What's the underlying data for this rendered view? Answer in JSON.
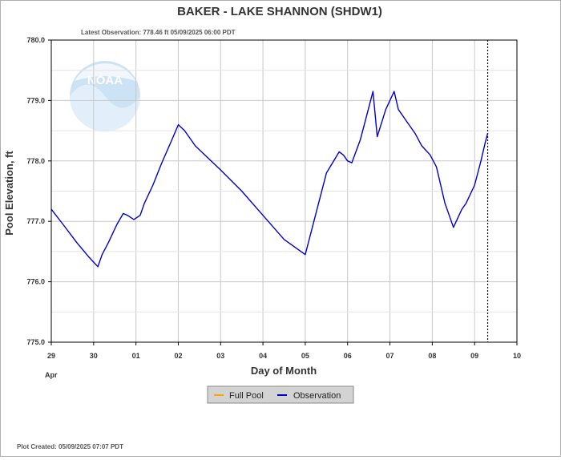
{
  "chart_data": {
    "type": "line",
    "title": "BAKER - LAKE SHANNON  (SHDW1)",
    "subtitle": "Latest Observation: 778.46 ft 05/09/2025 06:00 PDT",
    "xlabel": "Day of Month",
    "ylabel": "Pool Elevation, ft",
    "month_label": "Apr",
    "footer": "Plot Created: 05/09/2025 07:07 PDT",
    "watermark": "NOAA",
    "x_ticks": [
      "29",
      "30",
      "01",
      "02",
      "03",
      "04",
      "05",
      "06",
      "07",
      "08",
      "09",
      "10"
    ],
    "y_ticks": [
      "775.0",
      "776.0",
      "777.0",
      "778.0",
      "779.0",
      "780.0"
    ],
    "xlim": [
      0,
      11
    ],
    "ylim": [
      775.0,
      780.0
    ],
    "grid": true,
    "legend_position": "bottom-center",
    "latest_obs_x": 10.31,
    "colors": {
      "observation": "#0000cc",
      "full_pool": "#ffa500",
      "grid": "#c8c8c8",
      "marker": "#000000"
    },
    "series": [
      {
        "name": "Full Pool",
        "x": [],
        "y": []
      },
      {
        "name": "Observation",
        "x": [
          0.0,
          0.3,
          0.6,
          0.9,
          1.1,
          1.2,
          1.35,
          1.55,
          1.7,
          1.8,
          1.95,
          2.1,
          2.2,
          2.4,
          2.6,
          2.85,
          3.0,
          3.15,
          3.4,
          3.7,
          4.0,
          4.5,
          5.0,
          5.5,
          6.0,
          6.5,
          6.8,
          6.9,
          7.0,
          7.1,
          7.3,
          7.45,
          7.6,
          7.7,
          7.9,
          8.1,
          8.2,
          8.35,
          8.6,
          8.75,
          8.95,
          9.1,
          9.3,
          9.5,
          9.7,
          9.8,
          10.0,
          10.15,
          10.25,
          10.31
        ],
        "y": [
          777.2,
          776.93,
          776.65,
          776.4,
          776.25,
          776.45,
          776.65,
          776.95,
          777.13,
          777.1,
          777.03,
          777.1,
          777.3,
          777.6,
          777.95,
          778.35,
          778.6,
          778.5,
          778.25,
          778.05,
          777.85,
          777.5,
          777.1,
          776.7,
          776.45,
          777.8,
          778.15,
          778.1,
          778.0,
          777.97,
          778.35,
          778.75,
          779.15,
          778.4,
          778.85,
          779.15,
          778.85,
          778.7,
          778.45,
          778.25,
          778.1,
          777.9,
          777.3,
          776.9,
          777.2,
          777.3,
          777.6,
          778.0,
          778.3,
          778.46
        ]
      }
    ]
  }
}
